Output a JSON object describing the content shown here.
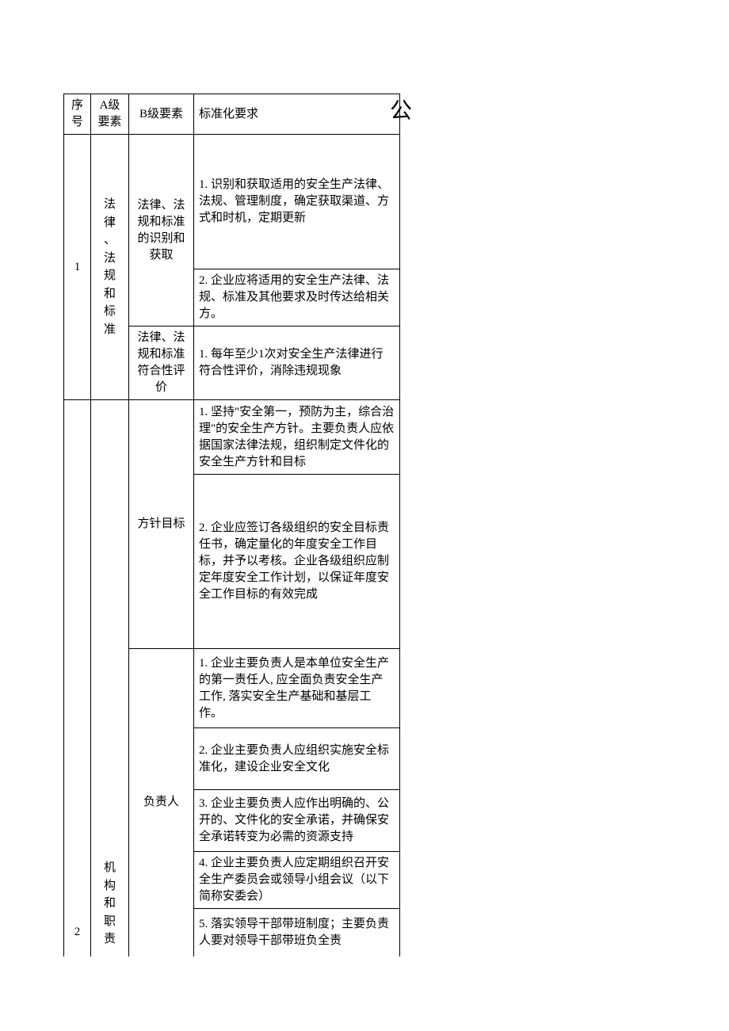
{
  "title_char": "公",
  "headers": {
    "seq": "序号",
    "a_element": "A级要素",
    "b_element": "B级要素",
    "requirement": "标准化要求"
  },
  "sections": [
    {
      "seq": "1",
      "a_element": "法律、法规和标准",
      "groups": [
        {
          "b_element": "法律、法规和标准的识别和获取",
          "requirements": [
            "1. 识别和获取适用的安全生产法律、法规、管理制度，确定获取渠道、方式和时机，定期更新",
            "2. 企业应将适用的安全生产法律、法规、标准及其他要求及时传达给相关方。"
          ]
        },
        {
          "b_element": "法律、法规和标准符合性评价",
          "requirements": [
            "1. 每年至少1次对安全生产法律进行符合性评价，消除违规现象"
          ]
        }
      ]
    },
    {
      "seq": "2",
      "a_element": "机构和职责",
      "groups": [
        {
          "b_element": "方针目标",
          "requirements": [
            "1. 坚持\"安全第一，预防为主，综合治理\"的安全生产方针。主要负责人应依据国家法律法规，组织制定文件化的安全生产方针和目标",
            "2. 企业应签订各级组织的安全目标责任书，确定量化的年度安全工作目标，并予以考核。企业各级组织应制定年度安全工作计划，以保证年度安全工作目标的有效完成"
          ]
        },
        {
          "b_element": "负责人",
          "requirements": [
            "1. 企业主要负责人是本单位安全生产的第一责任人, 应全面负责安全生产工作, 落实安全生产基础和基层工作。",
            "2. 企业主要负责人应组织实施安全标准化，建设企业安全文化",
            "3. 企业主要负责人应作出明确的、公开的、文件化的安全承诺，并确保安全承诺转变为必需的资源支持",
            "4. 企业主要负责人应定期组织召开安全生产委员会或领导小组会议（以下简称安委会）",
            "5. 落实领导干部带班制度；主要负责人要对领导干部带班负全责"
          ]
        }
      ]
    }
  ],
  "style": {
    "font_size_body": 15,
    "font_size_header_char": 28,
    "border_color": "#000000",
    "background": "#ffffff",
    "text_color": "#000000",
    "col_widths": {
      "seq": 34,
      "a": 48,
      "b": 82,
      "req": 260
    },
    "row_heights": {
      "header": 36,
      "s1_r1": 170,
      "s1_r2": 60,
      "s1_r3": 50,
      "s2_r1": 94,
      "s2_r2": 220,
      "s2_r3": 100,
      "s2_r4": 78,
      "s2_r5": 78,
      "s2_r6": 60,
      "s2_r7": 60
    }
  }
}
